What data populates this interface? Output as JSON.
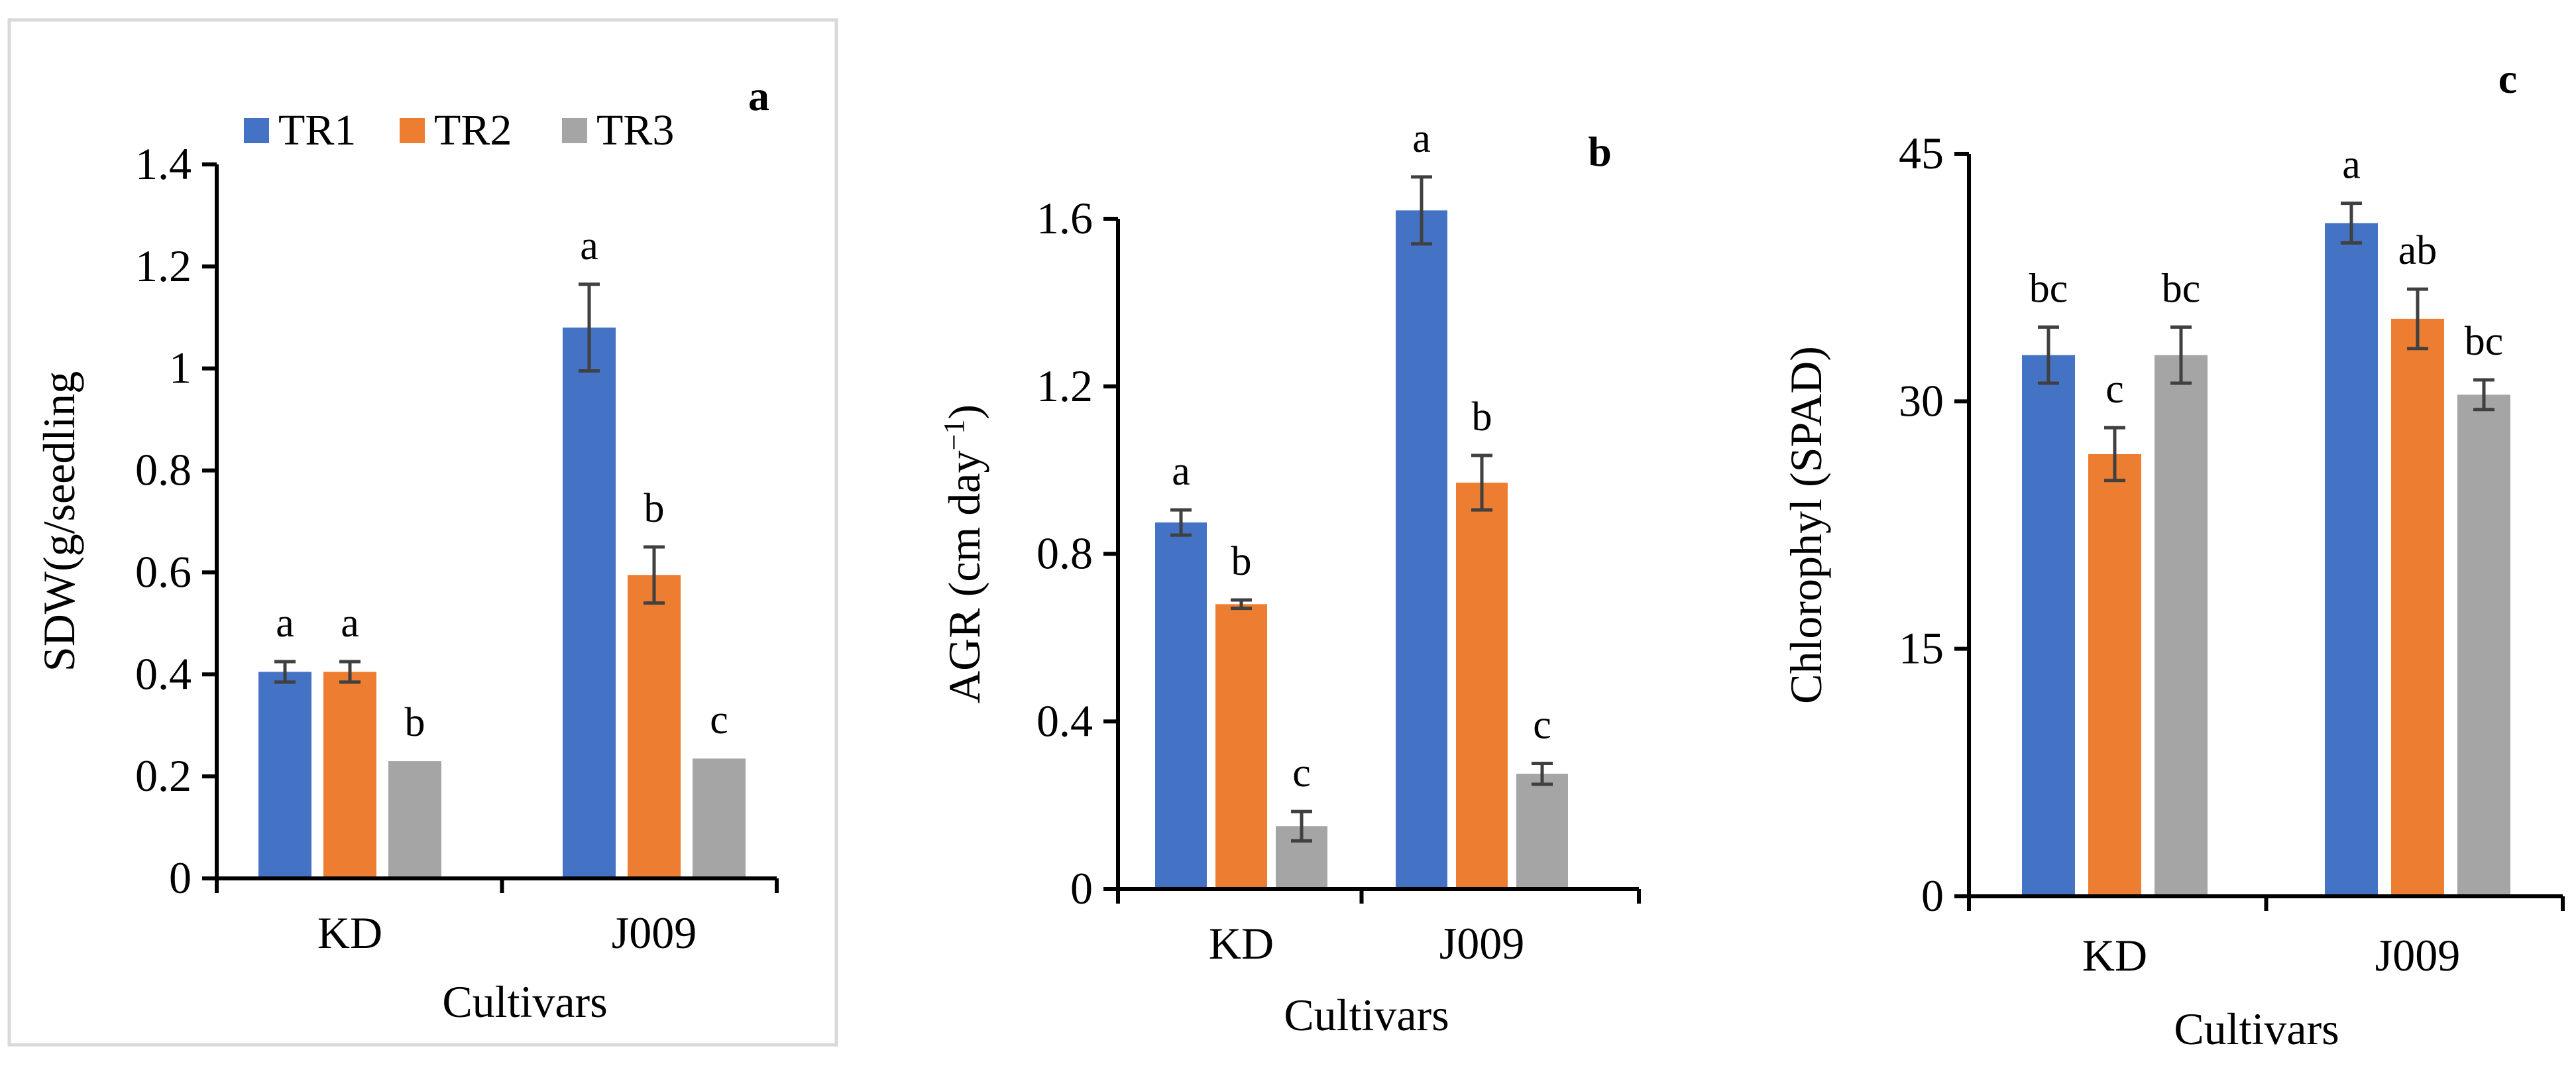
{
  "chart_data": [
    {
      "type": "bar",
      "panel_label": "a",
      "categories": [
        "KD",
        "J009"
      ],
      "series": [
        {
          "name": "TR1",
          "values": [
            0.405,
            1.08
          ],
          "errors": [
            0.02,
            0.085
          ],
          "sig": [
            "a",
            "a"
          ]
        },
        {
          "name": "TR2",
          "values": [
            0.405,
            0.595
          ],
          "errors": [
            0.02,
            0.055
          ],
          "sig": [
            "a",
            "b"
          ]
        },
        {
          "name": "TR3",
          "values": [
            0.23,
            0.235
          ],
          "errors": [
            0,
            0
          ],
          "sig": [
            "b",
            "c"
          ]
        }
      ],
      "xlabel": "Cultivars",
      "ylabel": "SDW(g/seedling",
      "ylim": [
        0,
        1.4
      ],
      "yticks": [
        "0",
        "0.2",
        "0.4",
        "0.6",
        "0.8",
        "1",
        "1.2",
        "1.4"
      ],
      "legend": "top",
      "grid": false
    },
    {
      "type": "bar",
      "panel_label": "b",
      "categories": [
        "KD",
        "J009"
      ],
      "series": [
        {
          "name": "TR1",
          "values": [
            0.875,
            1.62
          ],
          "errors": [
            0.03,
            0.08
          ],
          "sig": [
            "a",
            "a"
          ]
        },
        {
          "name": "TR2",
          "values": [
            0.68,
            0.97
          ],
          "errors": [
            0.01,
            0.065
          ],
          "sig": [
            "b",
            "b"
          ]
        },
        {
          "name": "TR3",
          "values": [
            0.15,
            0.275
          ],
          "errors": [
            0.035,
            0.025
          ],
          "sig": [
            "c",
            "c"
          ]
        }
      ],
      "xlabel": "Cultivars",
      "ylabel": "AGR (cm day",
      "ylabel_superscript": "−1",
      "ylabel_suffix": ")",
      "ylim": [
        0,
        1.8
      ],
      "yticks": [
        "0",
        "0.4",
        "0.8",
        "1.2",
        "1.6"
      ],
      "grid": false
    },
    {
      "type": "bar",
      "panel_label": "c",
      "categories": [
        "KD",
        "J009"
      ],
      "series": [
        {
          "name": "TR1",
          "values": [
            32.8,
            40.8
          ],
          "errors": [
            1.7,
            1.2
          ],
          "sig": [
            "bc",
            "a"
          ]
        },
        {
          "name": "TR2",
          "values": [
            26.8,
            35.0
          ],
          "errors": [
            1.6,
            1.8
          ],
          "sig": [
            "c",
            "ab"
          ]
        },
        {
          "name": "TR3",
          "values": [
            32.8,
            30.4
          ],
          "errors": [
            1.7,
            0.9
          ],
          "sig": [
            "bc",
            "bc"
          ]
        }
      ],
      "xlabel": "Cultivars",
      "ylabel": "Chlorophyl (SPAD)",
      "ylim": [
        0,
        45
      ],
      "yticks": [
        "0",
        "15",
        "30",
        "45"
      ],
      "grid": false
    }
  ],
  "colors": {
    "TR1": "#4472C4",
    "TR2": "#ED7D31",
    "TR3": "#A5A5A5",
    "error_bar": "#404040",
    "axis": "#000000",
    "frame": "#D9D9D9"
  }
}
